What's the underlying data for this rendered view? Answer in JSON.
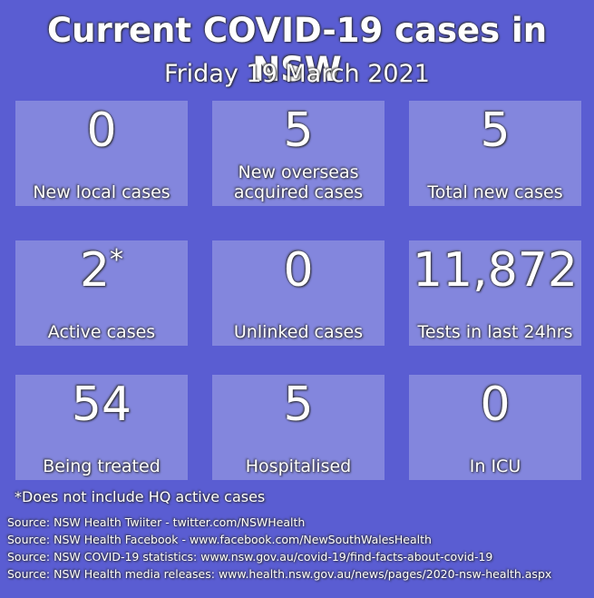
{
  "header": {
    "title": "Current COVID-19 cases in NSW",
    "date": "Friday 19 March 2021"
  },
  "tiles": [
    {
      "value": "0",
      "label": "New local cases"
    },
    {
      "value": "5",
      "label": "New overseas\nacquired cases"
    },
    {
      "value": "5",
      "label": "Total new cases"
    },
    {
      "value": "2",
      "marker": "*",
      "label": "Active cases"
    },
    {
      "value": "0",
      "label": "Unlinked cases"
    },
    {
      "value": "11,872",
      "label": "Tests in last 24hrs"
    },
    {
      "value": "54",
      "label": "Being treated"
    },
    {
      "value": "5",
      "label": "Hospitalised"
    },
    {
      "value": "0",
      "label": "In ICU"
    }
  ],
  "footnote": "*Does not include HQ active cases",
  "sources": [
    "Source: NSW Health Twiiter - twitter.com/NSWHealth",
    "Source: NSW Health Facebook - www.facebook.com/NewSouthWalesHealth",
    "Source: NSW COVID-19 statistics: www.nsw.gov.au/covid-19/find-facts-about-covid-19",
    "Source: NSW Health media releases: www.health.nsw.gov.au/news/pages/2020-nsw-health.aspx"
  ]
}
